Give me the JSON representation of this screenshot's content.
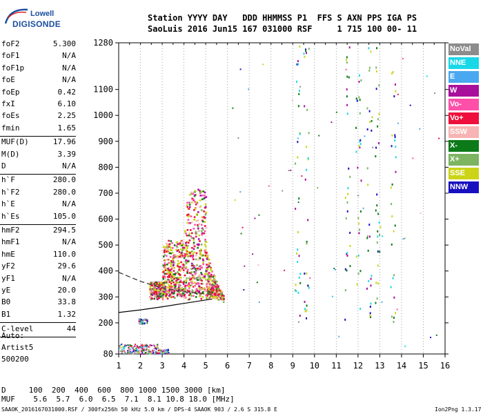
{
  "logo": {
    "top": "Lowell",
    "bottom": "DIGISONDE"
  },
  "header": {
    "line1": "Station YYYY DAY   DDD HHMMSS P1  FFS S AXN PPS IGA PS",
    "line2": "SaoLuis 2016 Jun15 167 031000 RSF     1 715 100 00- 11"
  },
  "params_group1": [
    {
      "name": "foF2",
      "value": "5.300"
    },
    {
      "name": "foF1",
      "value": "N/A"
    },
    {
      "name": "foF1p",
      "value": "N/A"
    },
    {
      "name": "foE",
      "value": "N/A"
    },
    {
      "name": "foEp",
      "value": "0.42"
    },
    {
      "name": "fxI",
      "value": "6.10"
    },
    {
      "name": "foEs",
      "value": "2.25"
    },
    {
      "name": "fmin",
      "value": "1.65"
    }
  ],
  "params_group2": [
    {
      "name": "MUF(D)",
      "value": "17.96"
    },
    {
      "name": "M(D)",
      "value": "3.39"
    },
    {
      "name": "D",
      "value": "N/A"
    }
  ],
  "params_group3": [
    {
      "name": "h`F",
      "value": "280.0"
    },
    {
      "name": "h`F2",
      "value": "280.0"
    },
    {
      "name": "h`E",
      "value": "N/A"
    },
    {
      "name": "h`Es",
      "value": "105.0"
    }
  ],
  "params_group4": [
    {
      "name": "hmF2",
      "value": "294.5"
    },
    {
      "name": "hmF1",
      "value": "N/A"
    },
    {
      "name": "hmE",
      "value": "110.0"
    },
    {
      "name": "yF2",
      "value": "29.6"
    },
    {
      "name": "yF1",
      "value": "N/A"
    },
    {
      "name": "yE",
      "value": "20.0"
    },
    {
      "name": "B0",
      "value": "33.8"
    },
    {
      "name": "B1",
      "value": "1.32"
    }
  ],
  "c_level": {
    "name": "C-level",
    "value": "44"
  },
  "auto": {
    "line1": "Auto:",
    "line2": "Artist5",
    "line3": "500200"
  },
  "legend": [
    {
      "label": "NoVal",
      "color": "#8c8c8c"
    },
    {
      "label": "NNE",
      "color": "#18d8e8"
    },
    {
      "label": "E",
      "color": "#4aa8f0"
    },
    {
      "label": "W",
      "color": "#a8109c"
    },
    {
      "label": "Vo-",
      "color": "#ff4fa8"
    },
    {
      "label": "Vo+",
      "color": "#ee0f3c"
    },
    {
      "label": "SSW",
      "color": "#f8b4b4"
    },
    {
      "label": "X-",
      "color": "#0c7a18"
    },
    {
      "label": "X+",
      "color": "#7cb460"
    },
    {
      "label": "SSE",
      "color": "#ccd418"
    },
    {
      "label": "NNW",
      "color": "#1810c0"
    }
  ],
  "bottom": {
    "d_line": "D     100  200  400  600  800 1000 1500 3000 [km]",
    "muf_line": "MUF    5.6  5.7  6.0  6.5  7.1  8.1 10.8 18.0 [MHz]",
    "footer_left": "SAAOK_2016167031000.RSF / 300fx256h 50 kHz 5.0 km / DPS-4 SAAOK 903 / 2.6 S 315.8 E",
    "footer_right": "Ion2Png 1.3.17"
  },
  "chart_data": {
    "type": "scatter",
    "title": "",
    "xlabel": "",
    "ylabel": "",
    "xlim": [
      1,
      16
    ],
    "ylim": [
      80,
      1280
    ],
    "xticks": [
      1,
      2,
      3,
      4,
      5,
      6,
      7,
      8,
      9,
      10,
      11,
      12,
      13,
      14,
      15,
      16
    ],
    "yticks": [
      80,
      200,
      300,
      400,
      500,
      600,
      700,
      800,
      900,
      1000,
      1100,
      1280
    ],
    "grid": "dotted vertical",
    "legend_position": "right",
    "regions": [
      {
        "name": "F-layer echoes",
        "x_range": [
          2.3,
          6.0
        ],
        "y_range": [
          290,
          720
        ]
      },
      {
        "name": "Es/E echoes",
        "x_range": [
          1.0,
          3.2
        ],
        "y_range": [
          82,
          120
        ]
      },
      {
        "name": "low spread",
        "x_range": [
          1.8,
          2.3
        ],
        "y_range": [
          200,
          215
        ]
      },
      {
        "name": "vertical echo columns",
        "x_values": [
          9.2,
          9.6,
          11.5,
          12.0,
          12.5,
          12.9,
          13.6
        ],
        "y_range": [
          200,
          1280
        ]
      }
    ],
    "dashed_curve": [
      [
        1.0,
        395
      ],
      [
        2.0,
        360
      ],
      [
        3.0,
        335
      ],
      [
        4.0,
        320
      ],
      [
        5.0,
        312
      ],
      [
        5.3,
        310
      ]
    ],
    "solid_curve": [
      [
        1.0,
        240
      ],
      [
        2.0,
        250
      ],
      [
        3.0,
        262
      ],
      [
        4.0,
        275
      ],
      [
        5.0,
        288
      ],
      [
        5.3,
        292
      ]
    ]
  }
}
